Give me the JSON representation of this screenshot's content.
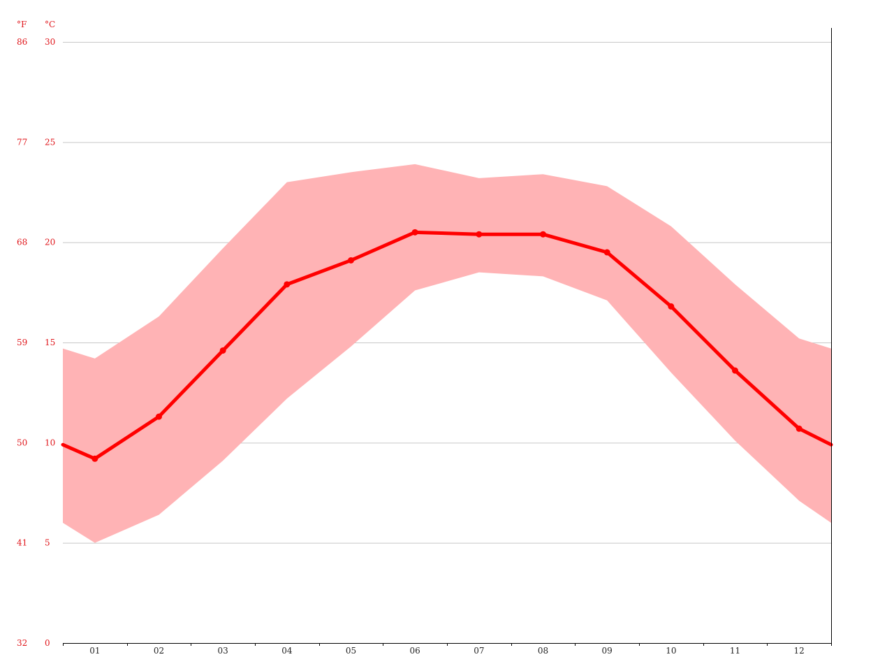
{
  "chart_data": {
    "type": "line",
    "title": "",
    "xlabel": "",
    "ylabel": "",
    "categories": [
      "01",
      "02",
      "03",
      "04",
      "05",
      "06",
      "07",
      "08",
      "09",
      "10",
      "11",
      "12"
    ],
    "y_unit_left": "°F",
    "y_unit_right": "°C",
    "y_ticks_c": [
      0,
      5,
      10,
      15,
      20,
      25,
      30
    ],
    "y_ticks_f": [
      32,
      41,
      50,
      59,
      68,
      77,
      86
    ],
    "ylim": [
      0,
      30
    ],
    "grid": true,
    "edge_start": {
      "avg": 9.9,
      "min": 6.0,
      "max": 14.7
    },
    "edge_end": {
      "avg": 9.9,
      "min": 6.0,
      "max": 14.7
    },
    "series": [
      {
        "values": [
          9.2,
          11.3,
          14.6,
          17.9,
          19.1,
          20.5,
          20.4,
          20.4,
          19.5,
          16.8,
          13.6,
          10.7
        ]
      },
      {
        "values": [
          5.0,
          6.4,
          9.1,
          12.2,
          14.8,
          17.6,
          18.5,
          18.3,
          17.1,
          13.5,
          10.1,
          7.1
        ]
      },
      {
        "values": [
          14.2,
          16.3,
          19.7,
          23.0,
          23.5,
          23.9,
          23.2,
          23.4,
          22.8,
          20.8,
          17.9,
          15.2
        ]
      }
    ],
    "colors": {
      "line": "#ff0000",
      "band": "#ffb3b5",
      "ticks": "#e0161b",
      "grid": "#c8c8c8",
      "axis": "#000000"
    }
  }
}
